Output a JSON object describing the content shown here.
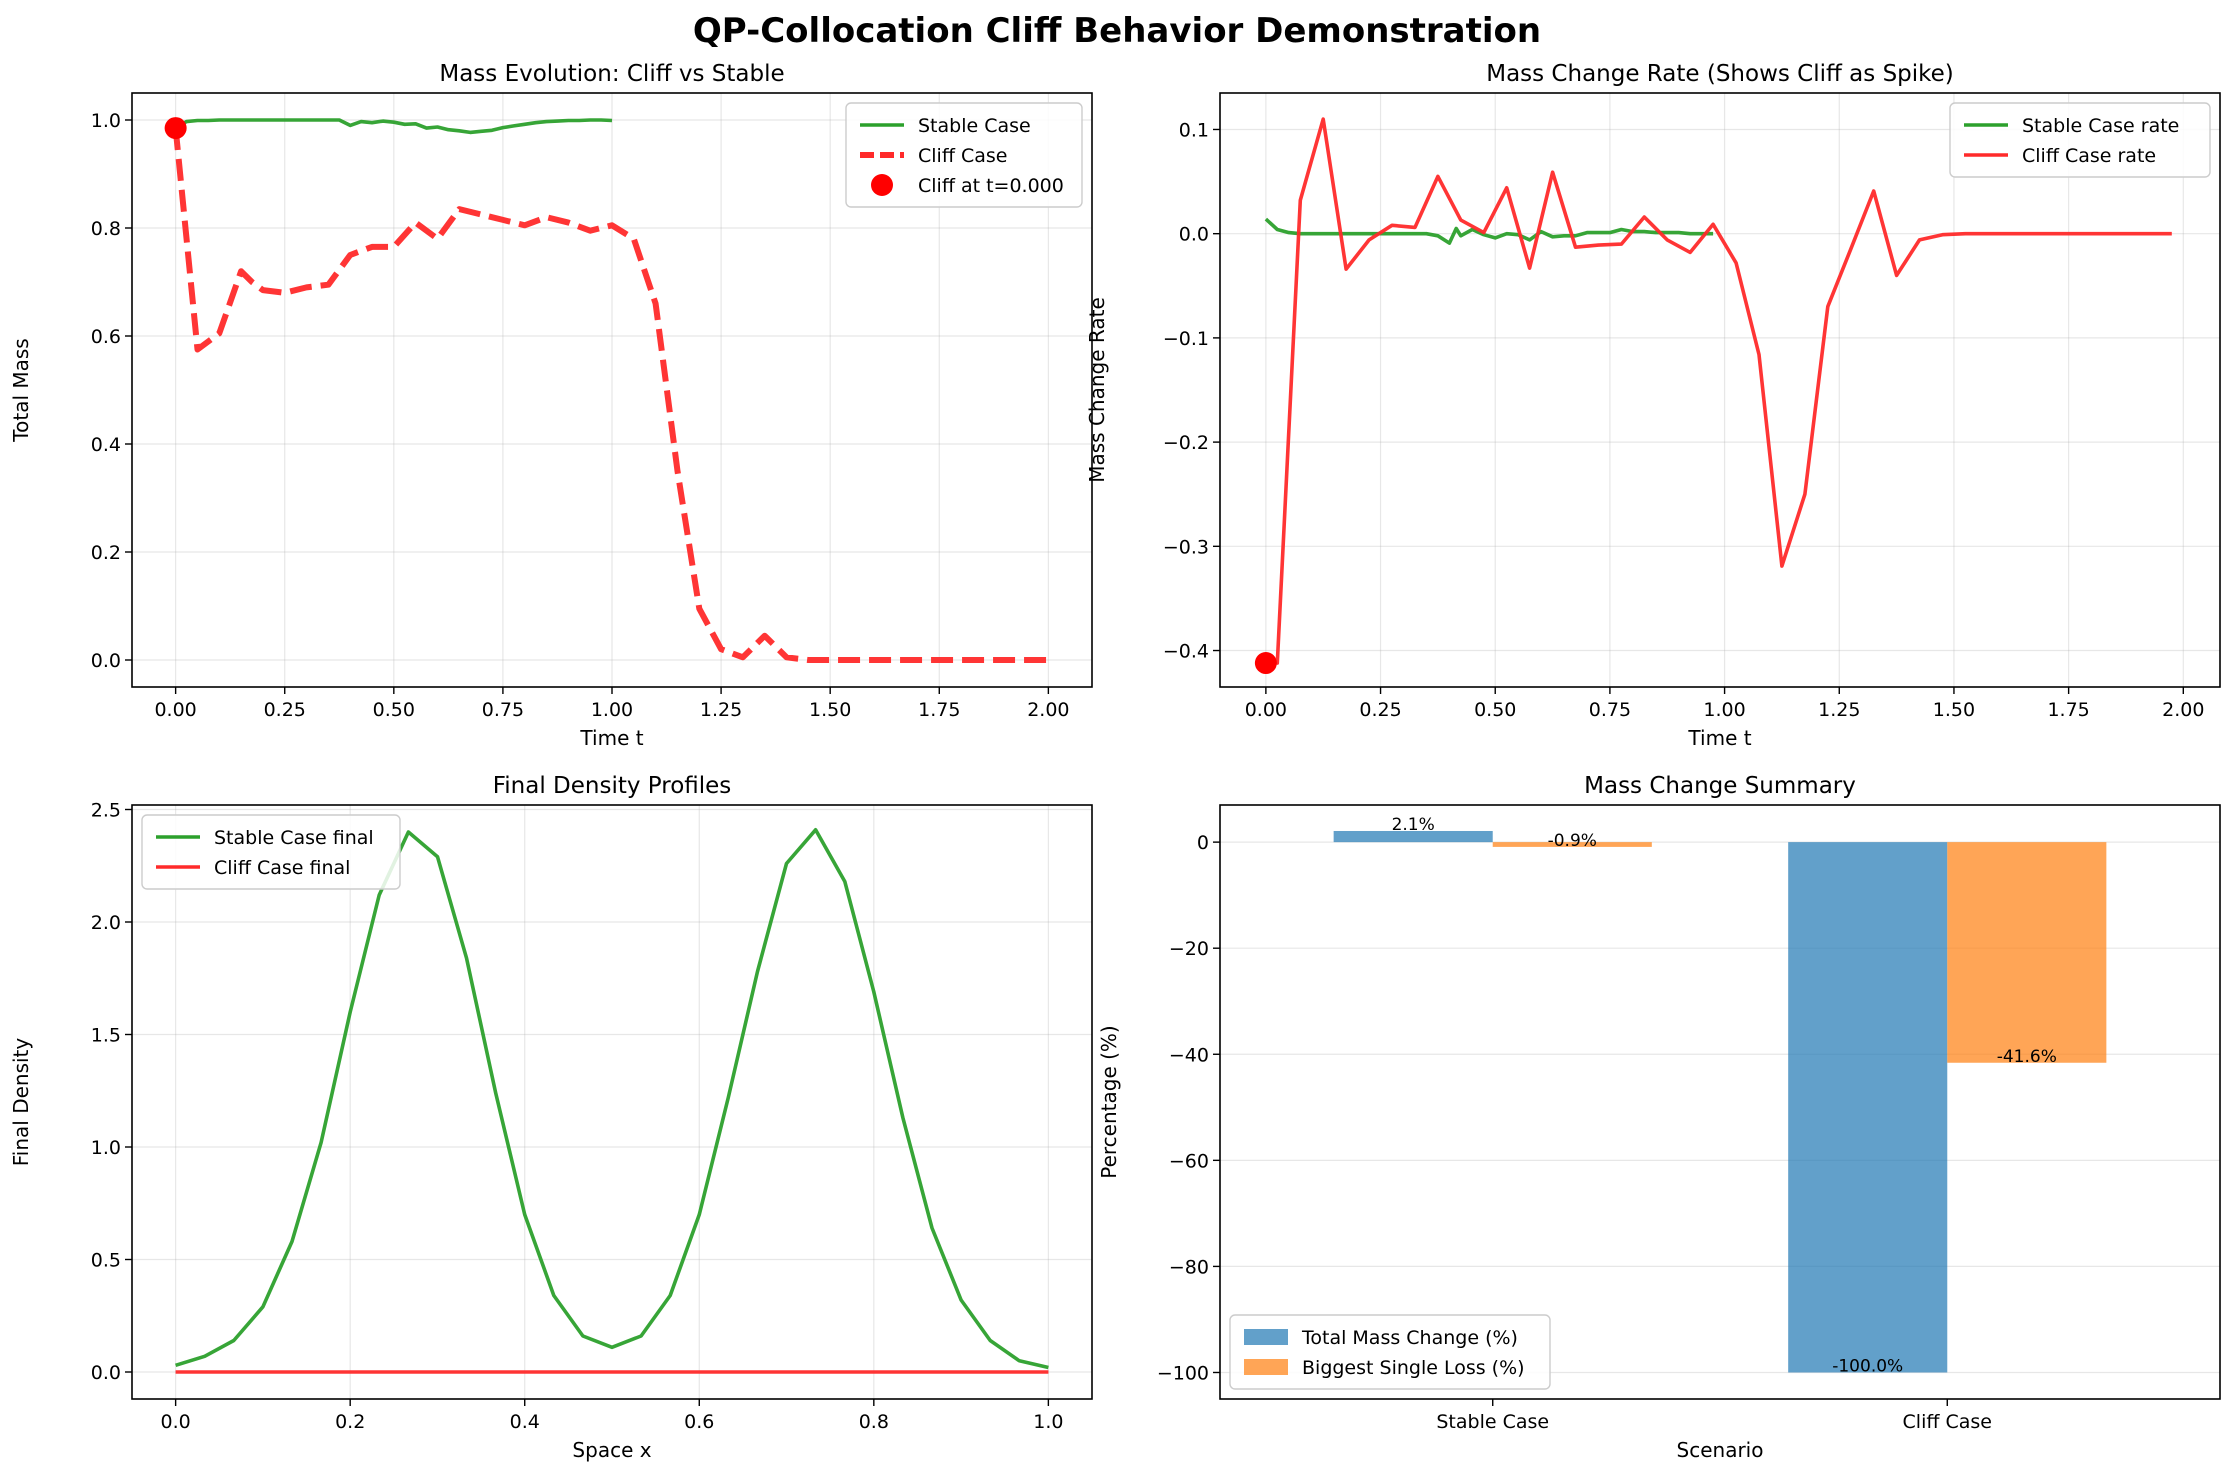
{
  "figure_title": "QP-Collocation Cliff Behavior Demonstration",
  "colors": {
    "stable": "#2ca02c",
    "cliff": "#ff2a2a",
    "cliff_marker": "#ff0000",
    "bar_total": "#1f77b4",
    "bar_loss": "#ff7f0e"
  },
  "chart_data": [
    {
      "type": "line",
      "title": "Mass Evolution: Cliff vs Stable",
      "xlabel": "Time t",
      "ylabel": "Total Mass",
      "xlim": [
        -0.1,
        2.1
      ],
      "ylim": [
        -0.05,
        1.05
      ],
      "xticks": [
        0.0,
        0.25,
        0.5,
        0.75,
        1.0,
        1.25,
        1.5,
        1.75,
        2.0
      ],
      "xtick_labels": [
        "0.00",
        "0.25",
        "0.50",
        "0.75",
        "1.00",
        "1.25",
        "1.50",
        "1.75",
        "2.00"
      ],
      "yticks": [
        0.0,
        0.2,
        0.4,
        0.6,
        0.8,
        1.0
      ],
      "ytick_labels": [
        "0.0",
        "0.2",
        "0.4",
        "0.6",
        "0.8",
        "1.0"
      ],
      "grid": true,
      "legend_position": "upper right",
      "series": [
        {
          "name": "Stable Case",
          "style": "solid",
          "color": "#2ca02c",
          "x": [
            0.0,
            0.025,
            0.05,
            0.075,
            0.1,
            0.125,
            0.15,
            0.175,
            0.2,
            0.225,
            0.25,
            0.275,
            0.3,
            0.325,
            0.35,
            0.375,
            0.4,
            0.425,
            0.45,
            0.475,
            0.5,
            0.525,
            0.55,
            0.575,
            0.6,
            0.625,
            0.65,
            0.675,
            0.7,
            0.725,
            0.75,
            0.775,
            0.8,
            0.825,
            0.85,
            0.875,
            0.9,
            0.925,
            0.95,
            0.975,
            1.0
          ],
          "y": [
            0.985,
            0.997,
            0.999,
            0.999,
            1.0,
            1.0,
            1.0,
            1.0,
            1.0,
            1.0,
            1.0,
            1.0,
            1.0,
            1.0,
            1.0,
            1.0,
            0.99,
            0.997,
            0.995,
            0.998,
            0.996,
            0.992,
            0.993,
            0.985,
            0.987,
            0.982,
            0.98,
            0.977,
            0.979,
            0.981,
            0.986,
            0.989,
            0.992,
            0.995,
            0.997,
            0.998,
            0.999,
            0.999,
            1.0,
            1.0,
            0.999
          ]
        },
        {
          "name": "Cliff Case",
          "style": "dashed",
          "color": "#ff2a2a",
          "x": [
            0.0,
            0.05,
            0.1,
            0.15,
            0.175,
            0.2,
            0.25,
            0.3,
            0.35,
            0.4,
            0.45,
            0.5,
            0.55,
            0.6,
            0.65,
            0.7,
            0.75,
            0.8,
            0.85,
            0.9,
            0.95,
            1.0,
            1.05,
            1.1,
            1.15,
            1.2,
            1.25,
            1.3,
            1.35,
            1.4,
            1.45,
            1.5,
            1.55,
            1.6,
            1.65,
            1.7,
            1.75,
            1.8,
            1.85,
            1.9,
            1.95,
            2.0
          ],
          "y": [
            0.985,
            0.575,
            0.605,
            0.72,
            0.7,
            0.685,
            0.68,
            0.69,
            0.695,
            0.75,
            0.765,
            0.765,
            0.81,
            0.78,
            0.835,
            0.825,
            0.815,
            0.805,
            0.82,
            0.81,
            0.795,
            0.805,
            0.78,
            0.66,
            0.35,
            0.095,
            0.02,
            0.005,
            0.045,
            0.005,
            0.0,
            0.0,
            0.0,
            0.0,
            0.0,
            0.0,
            0.0,
            0.0,
            0.0,
            0.0,
            0.0,
            0.0
          ]
        }
      ],
      "markers": [
        {
          "name": "Cliff at t=0.000",
          "x": 0.0,
          "y": 0.985,
          "color": "#ff0000"
        }
      ]
    },
    {
      "type": "line",
      "title": "Mass Change Rate (Shows Cliff as Spike)",
      "xlabel": "Time t",
      "ylabel": "Mass Change Rate",
      "xlim": [
        -0.1,
        2.08
      ],
      "ylim": [
        -0.435,
        0.135
      ],
      "xticks": [
        0.0,
        0.25,
        0.5,
        0.75,
        1.0,
        1.25,
        1.5,
        1.75,
        2.0
      ],
      "xtick_labels": [
        "0.00",
        "0.25",
        "0.50",
        "0.75",
        "1.00",
        "1.25",
        "1.50",
        "1.75",
        "2.00"
      ],
      "yticks": [
        -0.4,
        -0.3,
        -0.2,
        -0.1,
        0.0,
        0.1
      ],
      "ytick_labels": [
        "−0.4",
        "−0.3",
        "−0.2",
        "−0.1",
        "0.0",
        "0.1"
      ],
      "grid": true,
      "legend_position": "upper right",
      "series": [
        {
          "name": "Stable Case rate",
          "style": "solid",
          "color": "#2ca02c",
          "x": [
            0.0,
            0.025,
            0.05,
            0.075,
            0.1,
            0.125,
            0.15,
            0.175,
            0.2,
            0.225,
            0.25,
            0.275,
            0.3,
            0.325,
            0.35,
            0.375,
            0.4,
            0.415,
            0.425,
            0.45,
            0.475,
            0.5,
            0.525,
            0.55,
            0.575,
            0.6,
            0.625,
            0.65,
            0.675,
            0.7,
            0.725,
            0.75,
            0.775,
            0.8,
            0.825,
            0.85,
            0.875,
            0.9,
            0.925,
            0.95,
            0.975
          ],
          "y": [
            0.014,
            0.004,
            0.001,
            0.0,
            0.0,
            0.0,
            0.0,
            0.0,
            0.0,
            0.0,
            0.0,
            0.0,
            0.0,
            0.0,
            0.0,
            -0.002,
            -0.009,
            0.005,
            -0.002,
            0.004,
            -0.001,
            -0.004,
            0.0,
            -0.001,
            -0.006,
            0.002,
            -0.003,
            -0.002,
            -0.002,
            0.001,
            0.001,
            0.001,
            0.004,
            0.002,
            0.002,
            0.001,
            0.001,
            0.001,
            0.0,
            0.0,
            0.0
          ]
        },
        {
          "name": "Cliff Case rate",
          "style": "solid",
          "color": "#ff2a2a",
          "x": [
            0.0,
            0.025,
            0.075,
            0.125,
            0.175,
            0.225,
            0.275,
            0.325,
            0.375,
            0.425,
            0.475,
            0.525,
            0.575,
            0.625,
            0.675,
            0.725,
            0.775,
            0.825,
            0.875,
            0.925,
            0.975,
            1.025,
            1.075,
            1.125,
            1.175,
            1.225,
            1.275,
            1.325,
            1.375,
            1.425,
            1.475,
            1.525,
            1.575,
            1.625,
            1.675,
            1.725,
            1.775,
            1.825,
            1.875,
            1.925,
            1.975
          ],
          "y": [
            -0.41,
            -0.412,
            0.032,
            0.11,
            -0.034,
            -0.006,
            0.008,
            0.006,
            0.055,
            0.013,
            0.001,
            0.044,
            -0.033,
            0.059,
            -0.013,
            -0.011,
            -0.01,
            0.016,
            -0.006,
            -0.018,
            0.009,
            -0.028,
            -0.116,
            -0.319,
            -0.25,
            -0.07,
            -0.015,
            0.041,
            -0.04,
            -0.006,
            -0.001,
            0.0,
            0.0,
            0.0,
            0.0,
            0.0,
            0.0,
            0.0,
            0.0,
            0.0,
            0.0
          ]
        }
      ],
      "markers": [
        {
          "x": 0.0,
          "y": -0.412,
          "color": "#ff0000"
        }
      ]
    },
    {
      "type": "line",
      "title": "Final Density Profiles",
      "xlabel": "Space x",
      "ylabel": "Final Density",
      "xlim": [
        -0.05,
        1.05
      ],
      "ylim": [
        -0.12,
        2.52
      ],
      "xticks": [
        0.0,
        0.2,
        0.4,
        0.6,
        0.8,
        1.0
      ],
      "xtick_labels": [
        "0.0",
        "0.2",
        "0.4",
        "0.6",
        "0.8",
        "1.0"
      ],
      "yticks": [
        0.0,
        0.5,
        1.0,
        1.5,
        2.0,
        2.5
      ],
      "ytick_labels": [
        "0.0",
        "0.5",
        "1.0",
        "1.5",
        "2.0",
        "2.5"
      ],
      "grid": true,
      "legend_position": "upper left",
      "series": [
        {
          "name": "Stable Case final",
          "style": "solid",
          "color": "#2ca02c",
          "x": [
            0.0,
            0.0333,
            0.0667,
            0.1,
            0.1333,
            0.1667,
            0.2,
            0.2333,
            0.2667,
            0.3,
            0.3333,
            0.3667,
            0.4,
            0.4333,
            0.4667,
            0.5,
            0.5333,
            0.5667,
            0.6,
            0.6333,
            0.6667,
            0.7,
            0.7333,
            0.7667,
            0.8,
            0.8333,
            0.8667,
            0.9,
            0.9333,
            0.9667,
            1.0
          ],
          "y": [
            0.03,
            0.07,
            0.14,
            0.29,
            0.58,
            1.02,
            1.6,
            2.12,
            2.4,
            2.29,
            1.84,
            1.24,
            0.7,
            0.34,
            0.16,
            0.11,
            0.16,
            0.34,
            0.7,
            1.22,
            1.78,
            2.26,
            2.41,
            2.18,
            1.69,
            1.13,
            0.64,
            0.32,
            0.14,
            0.05,
            0.02
          ]
        },
        {
          "name": "Cliff Case final",
          "style": "solid",
          "color": "#ff2a2a",
          "x": [
            0.0,
            1.0
          ],
          "y": [
            0.0,
            0.0
          ]
        }
      ]
    },
    {
      "type": "bar",
      "title": "Mass Change Summary",
      "xlabel": "Scenario",
      "ylabel": "Percentage (%)",
      "categories": [
        "Stable Case",
        "Cliff Case"
      ],
      "ylim": [
        -105,
        7
      ],
      "yticks": [
        0,
        -20,
        -40,
        -60,
        -80,
        -100
      ],
      "ytick_labels": [
        "0",
        "−20",
        "−40",
        "−60",
        "−80",
        "−100"
      ],
      "grid": true,
      "legend_position": "lower left",
      "series": [
        {
          "name": "Total Mass Change (%)",
          "color": "#1f77b4",
          "values": [
            2.1,
            -100.0
          ],
          "labels": [
            "2.1%",
            "-100.0%"
          ]
        },
        {
          "name": "Biggest Single Loss (%)",
          "color": "#ff7f0e",
          "values": [
            -0.9,
            -41.6
          ],
          "labels": [
            "-0.9%",
            "-41.6%"
          ]
        }
      ]
    }
  ]
}
